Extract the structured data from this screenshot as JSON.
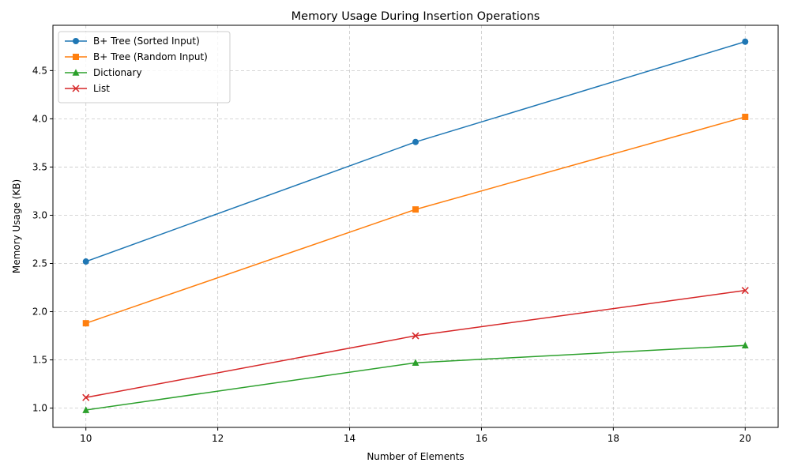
{
  "chart_data": {
    "type": "line",
    "title": "Memory Usage During Insertion Operations",
    "xlabel": "Number of Elements",
    "ylabel": "Memory Usage (KB)",
    "x": [
      10,
      15,
      20
    ],
    "xlim": [
      9.5,
      20.5
    ],
    "ylim": [
      0.8,
      4.97
    ],
    "xticks": [
      10,
      12,
      14,
      16,
      18,
      20
    ],
    "yticks": [
      1.0,
      1.5,
      2.0,
      2.5,
      3.0,
      3.5,
      4.0,
      4.5
    ],
    "xtick_labels": [
      "10",
      "12",
      "14",
      "16",
      "18",
      "20"
    ],
    "ytick_labels": [
      "1.0",
      "1.5",
      "2.0",
      "2.5",
      "3.0",
      "3.5",
      "4.0",
      "4.5"
    ],
    "grid": true,
    "legend_position": "top-left",
    "series": [
      {
        "name": "B+ Tree (Sorted Input)",
        "values": [
          2.52,
          3.76,
          4.8
        ],
        "color": "#1f77b4",
        "marker": "circle"
      },
      {
        "name": "B+ Tree (Random Input)",
        "values": [
          1.88,
          3.06,
          4.02
        ],
        "color": "#ff7f0e",
        "marker": "square"
      },
      {
        "name": "Dictionary",
        "values": [
          0.98,
          1.47,
          1.65
        ],
        "color": "#2ca02c",
        "marker": "triangle"
      },
      {
        "name": "List",
        "values": [
          1.11,
          1.75,
          2.22
        ],
        "color": "#d62728",
        "marker": "x"
      }
    ]
  }
}
